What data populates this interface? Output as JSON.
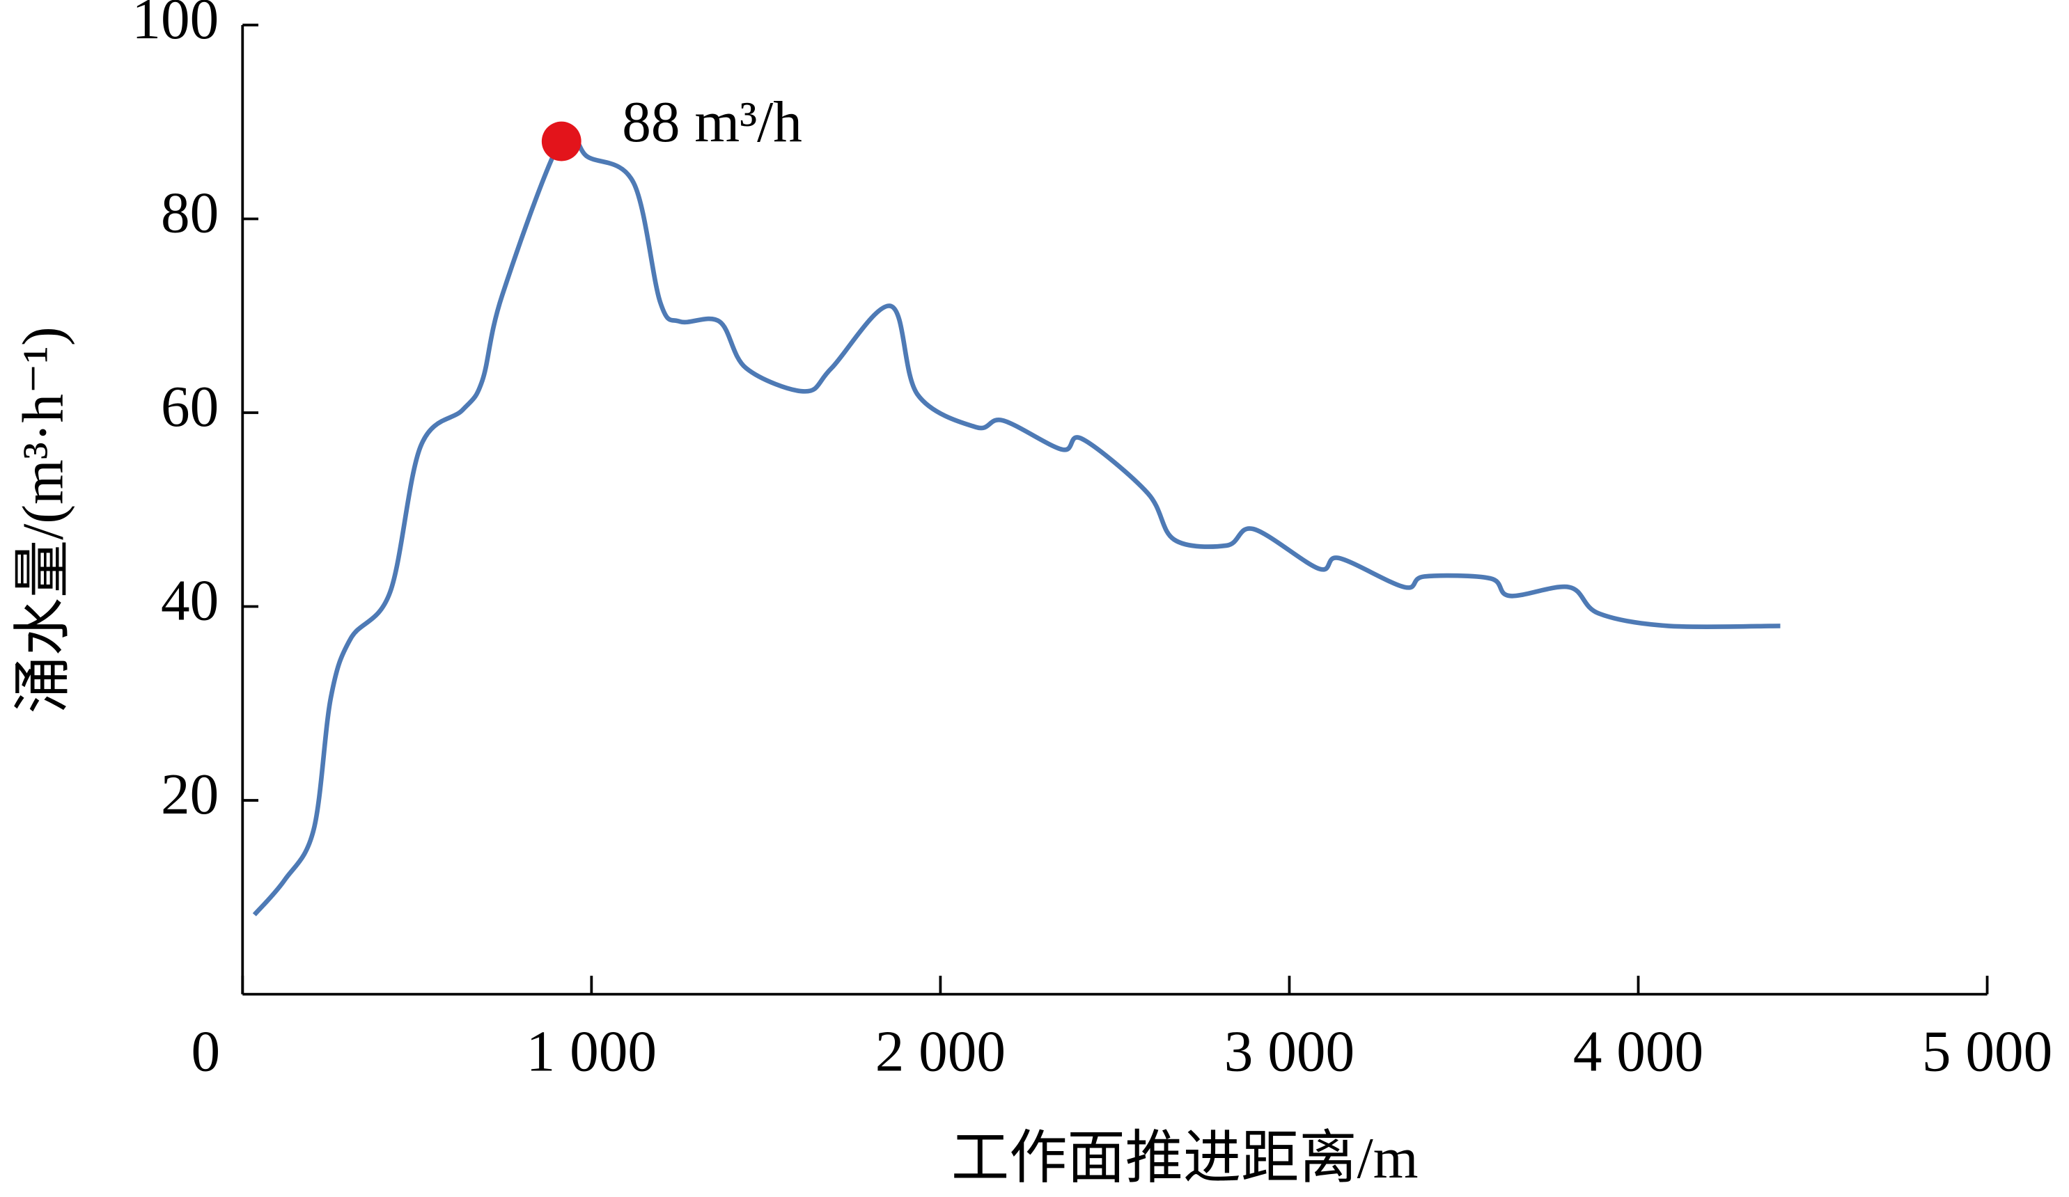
{
  "chart_data": {
    "type": "line",
    "x_label": "工作面推进距离/m",
    "y_label": "涌水量/(m³·h⁻¹)",
    "x": [
      34,
      121,
      204,
      253,
      310,
      423,
      510,
      631,
      687,
      744,
      914,
      989,
      1121,
      1197,
      1254,
      1367,
      1443,
      1612,
      1688,
      1858,
      1934,
      2103,
      2179,
      2349,
      2406,
      2594,
      2670,
      2821,
      2897,
      3085,
      3142,
      3330,
      3387,
      3576,
      3632,
      3802,
      3886,
      4086,
      4407
    ],
    "series": [
      {
        "color": "#4e7ab5",
        "values": [
          8.2,
          11.8,
          17,
          30.6,
          36.7,
          41.5,
          56.5,
          60.3,
          63.3,
          72.1,
          88.2,
          86.4,
          83.7,
          71.4,
          69.4,
          69.4,
          64.6,
          62.2,
          64.6,
          71,
          61.9,
          58.5,
          59.2,
          56.2,
          57.3,
          51.7,
          46.9,
          46.3,
          48,
          43.9,
          45,
          42,
          43.1,
          42.9,
          41.1,
          42,
          39.3,
          38,
          38
        ]
      }
    ],
    "annotations": [
      {
        "text": "88 m³/h",
        "x": 914,
        "y": 88,
        "color": "#e3141b"
      }
    ],
    "xlim": [
      0,
      5000
    ],
    "xticks": [
      0,
      {
        "value": 1000,
        "label": "1 000"
      },
      {
        "value": 2000,
        "label": "2 000"
      },
      {
        "value": 3000,
        "label": "3 000"
      },
      {
        "value": 4000,
        "label": "4 000"
      },
      {
        "value": 5000,
        "label": "5 000"
      }
    ],
    "ylim": [
      0,
      100
    ],
    "yticks": [
      20,
      40,
      60,
      80,
      100
    ]
  }
}
